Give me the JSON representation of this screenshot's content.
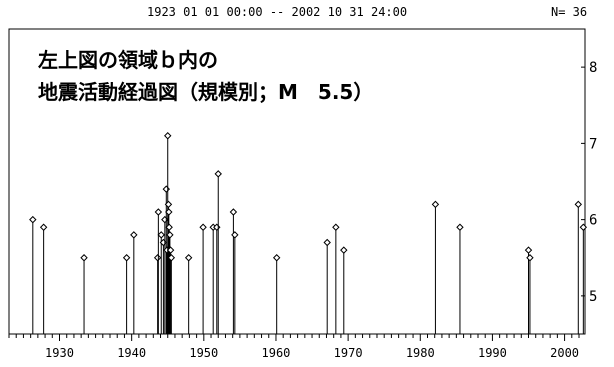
{
  "header": {
    "period": "1923 01 01 00:00 -- 2002 10 31 24:00",
    "count": "N= 36"
  },
  "title_lines": [
    "左上図の領域ｂ内の",
    "地震活動経過図（規模別；M　5.5）"
  ],
  "chart_data": {
    "type": "stem",
    "title": "左上図の領域ｂ内の 地震活動経過図（規模別；M　5.5）",
    "xlabel": "",
    "ylabel": "",
    "xlim": [
      1923.0,
      2002.83
    ],
    "ylim": [
      4.5,
      8.5
    ],
    "x_ticks": [
      1930,
      1940,
      1950,
      1960,
      1970,
      1980,
      1990,
      2000
    ],
    "y_ticks": [
      5,
      6,
      7,
      8
    ],
    "grid": false,
    "series": [
      {
        "points": [
          {
            "x": 1926.3,
            "y": 6.0
          },
          {
            "x": 1927.8,
            "y": 5.9
          },
          {
            "x": 1933.4,
            "y": 5.5
          },
          {
            "x": 1939.3,
            "y": 5.5
          },
          {
            "x": 1940.3,
            "y": 5.8
          },
          {
            "x": 1943.6,
            "y": 5.5
          },
          {
            "x": 1943.7,
            "y": 6.1
          },
          {
            "x": 1944.1,
            "y": 5.8
          },
          {
            "x": 1944.4,
            "y": 5.7
          },
          {
            "x": 1944.6,
            "y": 6.0
          },
          {
            "x": 1944.8,
            "y": 6.4
          },
          {
            "x": 1944.9,
            "y": 5.6
          },
          {
            "x": 1945.0,
            "y": 7.1
          },
          {
            "x": 1945.1,
            "y": 6.2
          },
          {
            "x": 1945.15,
            "y": 6.1
          },
          {
            "x": 1945.2,
            "y": 5.9
          },
          {
            "x": 1945.3,
            "y": 5.8
          },
          {
            "x": 1945.4,
            "y": 5.6
          },
          {
            "x": 1945.5,
            "y": 5.5
          },
          {
            "x": 1947.9,
            "y": 5.5
          },
          {
            "x": 1949.9,
            "y": 5.9
          },
          {
            "x": 1951.3,
            "y": 5.9
          },
          {
            "x": 1951.8,
            "y": 5.9
          },
          {
            "x": 1952.0,
            "y": 6.6
          },
          {
            "x": 1954.1,
            "y": 6.1
          },
          {
            "x": 1954.3,
            "y": 5.8
          },
          {
            "x": 1960.1,
            "y": 5.5
          },
          {
            "x": 1967.1,
            "y": 5.7
          },
          {
            "x": 1968.3,
            "y": 5.9
          },
          {
            "x": 1969.4,
            "y": 5.6
          },
          {
            "x": 1982.1,
            "y": 6.2
          },
          {
            "x": 1985.5,
            "y": 5.9
          },
          {
            "x": 1995.0,
            "y": 5.6
          },
          {
            "x": 1995.2,
            "y": 5.5
          },
          {
            "x": 2001.9,
            "y": 6.2
          },
          {
            "x": 2002.6,
            "y": 5.9
          }
        ]
      }
    ]
  }
}
